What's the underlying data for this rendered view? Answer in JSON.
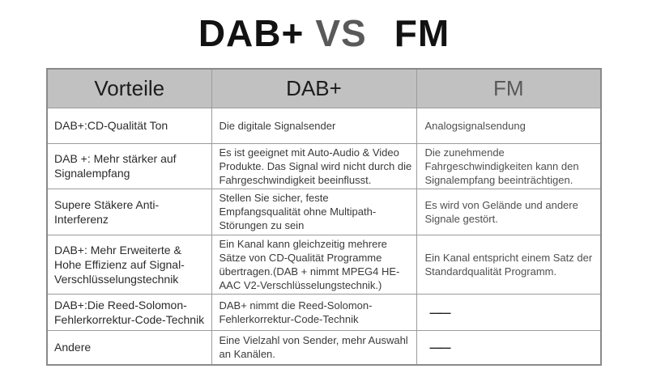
{
  "title": {
    "dab": "DAB+",
    "vs": "VS",
    "fm": "FM"
  },
  "table": {
    "headers": [
      "Vorteile",
      "DAB+",
      "FM"
    ],
    "rows": [
      {
        "vorteile": "DAB+:CD-Qualität Ton",
        "dab": "Die digitale Signalsender",
        "fm": "Analogsignalsendung"
      },
      {
        "vorteile": "DAB +: Mehr stärker auf Signalempfang",
        "dab": "Es ist geeignet mit Auto-Audio & Video Produkte. Das Signal wird nicht durch die Fahrgeschwindigkeit beeinflusst.",
        "fm": "Die zunehmende Fahrgeschwindigkeiten kann den Signalempfang beeinträchtigen."
      },
      {
        "vorteile": "Supere Stäkere Anti-Interferenz",
        "dab": "Stellen Sie sicher, feste Empfangsqualität ohne Multipath-Störungen zu sein",
        "fm": "Es wird von Gelände und andere Signale gestört."
      },
      {
        "vorteile": "DAB+: Mehr Erweiterte & Hohe Effizienz auf Signal-Verschlüsselungstechnik",
        "dab": "Ein Kanal kann gleichzeitig mehrere Sätze von CD-Qualität Programme übertragen.(DAB + nimmt MPEG4 HE-AAC V2-Verschlüsselungstechnik.)",
        "fm": "Ein Kanal entspricht einem Satz der Standardqualität Programm."
      },
      {
        "vorteile": "DAB+:Die Reed-Solomon-Fehlerkorrektur-Code-Technik",
        "dab": "DAB+ nimmt die Reed-Solomon-Fehlerkorrektur-Code-Technik",
        "fm": "——"
      },
      {
        "vorteile": "Andere",
        "dab": "Eine Vielzahl von Sender, mehr Auswahl an Kanälen.",
        "fm": "——"
      }
    ]
  },
  "colors": {
    "header_bg": "#c1c1c1",
    "table_border": "#8a8a8a",
    "cell_border": "#9b9b9b",
    "title_vs_gray": "#595959",
    "header_fm_gray": "#595959",
    "title_black": "#121212"
  }
}
